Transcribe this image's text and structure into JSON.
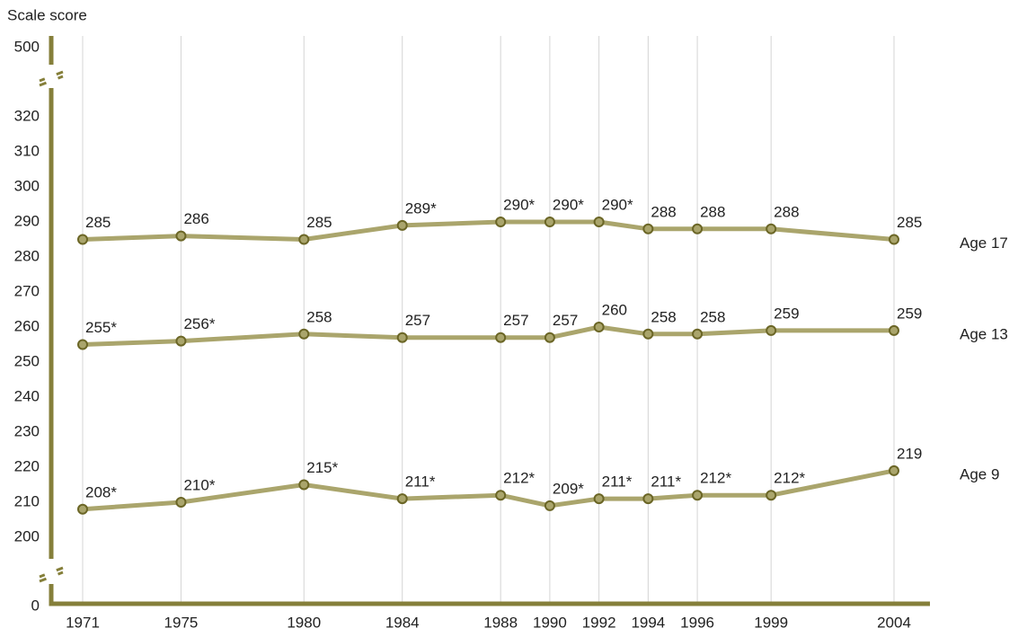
{
  "chart_data": {
    "type": "line",
    "y_label": "Scale score",
    "x": [
      1971,
      1975,
      1980,
      1984,
      1988,
      1990,
      1992,
      1994,
      1996,
      1999,
      2004
    ],
    "xlim": [
      1971,
      2004
    ],
    "xticks": [
      1971,
      1975,
      1980,
      1984,
      1988,
      1990,
      1992,
      1994,
      1996,
      1999,
      2004
    ],
    "ylim": [
      0,
      500
    ],
    "ybreaks": [
      [
        0,
        200
      ],
      [
        320,
        500
      ]
    ],
    "yticks": [
      0,
      200,
      210,
      220,
      230,
      240,
      250,
      260,
      270,
      280,
      290,
      300,
      310,
      320,
      500
    ],
    "grid": true,
    "series": [
      {
        "name": "Age 17",
        "color": "#aaa56c",
        "values": [
          285,
          286,
          285,
          289,
          290,
          290,
          290,
          288,
          288,
          288,
          285
        ],
        "value_labels": [
          "285",
          "286",
          "285",
          "289*",
          "290*",
          "290*",
          "290*",
          "288",
          "288",
          "288",
          "285"
        ]
      },
      {
        "name": "Age 13",
        "color": "#aaa56c",
        "values": [
          255,
          256,
          258,
          257,
          257,
          257,
          260,
          258,
          258,
          259,
          259
        ],
        "value_labels": [
          "255*",
          "256*",
          "258",
          "257",
          "257",
          "257",
          "260",
          "258",
          "258",
          "259",
          "259"
        ]
      },
      {
        "name": "Age 9",
        "color": "#aaa56c",
        "values": [
          208,
          210,
          215,
          211,
          212,
          209,
          211,
          211,
          212,
          212,
          219
        ],
        "value_labels": [
          "208*",
          "210*",
          "215*",
          "211*",
          "212*",
          "209*",
          "211*",
          "211*",
          "212*",
          "212*",
          "219"
        ]
      }
    ]
  }
}
